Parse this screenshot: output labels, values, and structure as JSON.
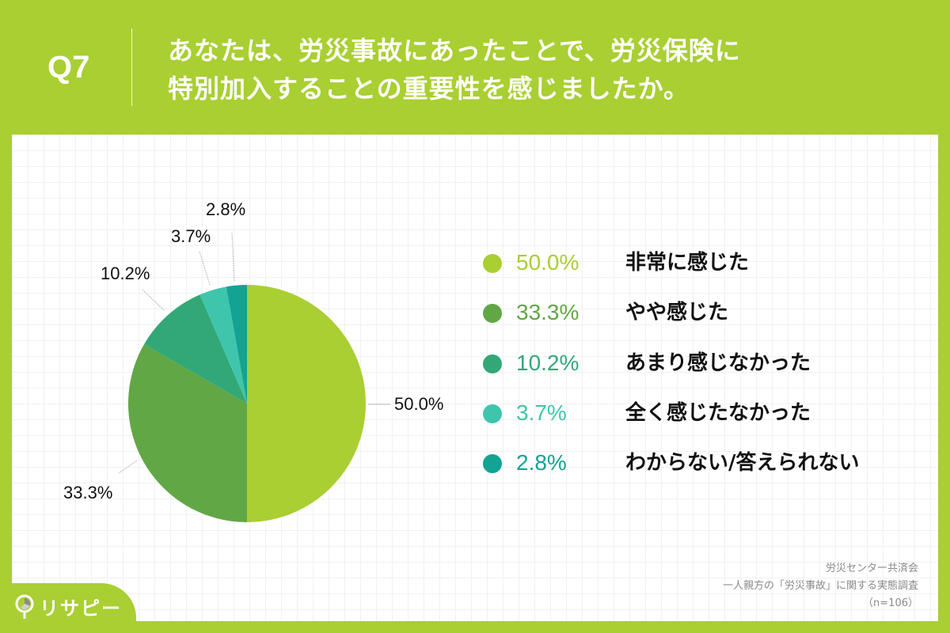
{
  "header": {
    "question_number": "Q7",
    "question_line1": "あなたは、労災事故にあったことで、労災保険に",
    "question_line2": "特別加入することの重要性を感じましたか。"
  },
  "colors": {
    "background": "#a9cf32",
    "series": [
      "#a9cf32",
      "#62a745",
      "#33a877",
      "#40c5ad",
      "#12a394"
    ]
  },
  "chart_data": {
    "type": "pie",
    "title": "あなたは、労災事故にあったことで、労災保険に特別加入することの重要性を感じましたか。",
    "categories": [
      "非常に感じた",
      "やや感じた",
      "あまり感じなかった",
      "全く感じたなかった",
      "わからない/答えられない"
    ],
    "values": [
      50.0,
      33.3,
      10.2,
      3.7,
      2.8
    ],
    "unit": "%",
    "start_angle": "12 o'clock, clockwise",
    "legend_position": "right",
    "n": 106
  },
  "pie_labels": [
    "50.0%",
    "33.3%",
    "10.2%",
    "3.7%",
    "2.8%"
  ],
  "legend": [
    {
      "pct": "50.0%",
      "label": "非常に感じた"
    },
    {
      "pct": "33.3%",
      "label": "やや感じた"
    },
    {
      "pct": "10.2%",
      "label": "あまり感じなかった"
    },
    {
      "pct": "3.7%",
      "label": "全く感じたなかった"
    },
    {
      "pct": "2.8%",
      "label": "わからない/答えられない"
    }
  ],
  "source": {
    "line1": "労災センター共済会",
    "line2": "一人親方の「労災事故」に関する実態調査",
    "line3": "（n=106）"
  },
  "logo": {
    "text": "リサピー",
    "icon": "magnifier-pie-icon"
  }
}
